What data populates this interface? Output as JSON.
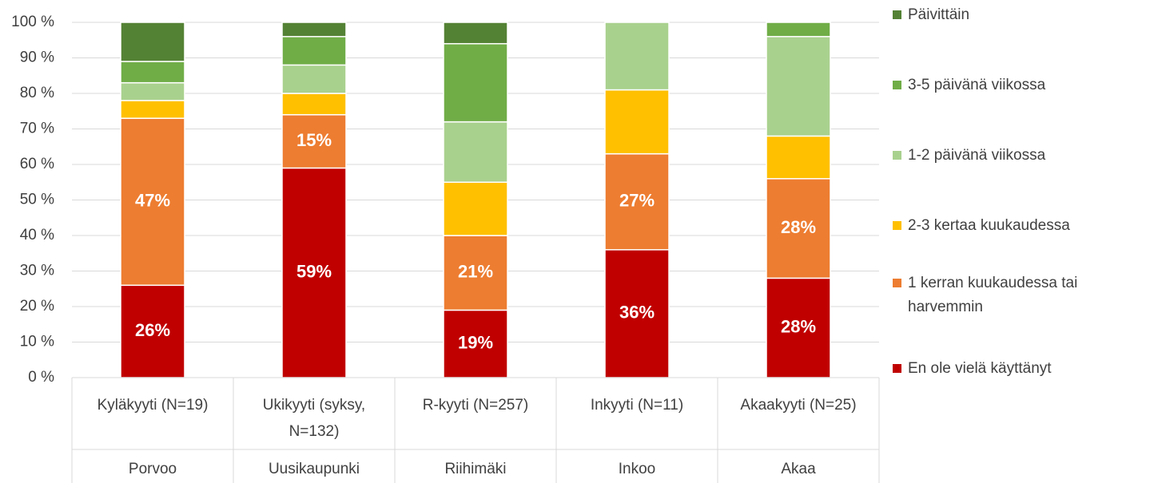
{
  "chart_data": {
    "type": "stacked_bar",
    "categories": [
      "Kyläkyyti (N=19)",
      "Ukikyyti (syksy, N=132)",
      "R-kyyti (N=257)",
      "Inkyyti (N=11)",
      "Akaakyyti (N=25)"
    ],
    "groups": [
      "Porvoo",
      "Uusikaupunki",
      "Riihimäki",
      "Inkoo",
      "Akaa"
    ],
    "series": [
      {
        "name": "En ole vielä käyttänyt",
        "color": "#c00000",
        "values": [
          26,
          59,
          19,
          36,
          28
        ],
        "value_labels": [
          "26%",
          "59%",
          "19%",
          "36%",
          "28%"
        ]
      },
      {
        "name": "1 kerran kuukaudessa tai harvemmin",
        "color": "#ed7d31",
        "values": [
          47,
          15,
          21,
          27,
          28
        ],
        "value_labels": [
          "47%",
          "15%",
          "21%",
          "27%",
          "28%"
        ]
      },
      {
        "name": "2-3 kertaa kuukaudessa",
        "color": "#ffc000",
        "values": [
          5,
          6,
          15,
          18,
          12
        ]
      },
      {
        "name": "1-2 päivänä viikossa",
        "color": "#a9d18e",
        "values": [
          5,
          8,
          17,
          19,
          28
        ]
      },
      {
        "name": "3-5 päivänä viikossa",
        "color": "#70ad47",
        "values": [
          6,
          8,
          22,
          0,
          4
        ]
      },
      {
        "name": "Päivittäin",
        "color": "#548235",
        "values": [
          11,
          4,
          6,
          0,
          0
        ]
      }
    ],
    "ylim": [
      0,
      100
    ],
    "yticks": [
      {
        "value": 0,
        "label": "0 %"
      },
      {
        "value": 10,
        "label": "10 %"
      },
      {
        "value": 20,
        "label": "20 %"
      },
      {
        "value": 30,
        "label": "30 %"
      },
      {
        "value": 40,
        "label": "40 %"
      },
      {
        "value": 50,
        "label": "50 %"
      },
      {
        "value": 60,
        "label": "60 %"
      },
      {
        "value": 70,
        "label": "70 %"
      },
      {
        "value": 80,
        "label": "80 %"
      },
      {
        "value": 90,
        "label": "90 %"
      },
      {
        "value": 100,
        "label": "100 %"
      }
    ],
    "grid": true,
    "legend": "right"
  }
}
